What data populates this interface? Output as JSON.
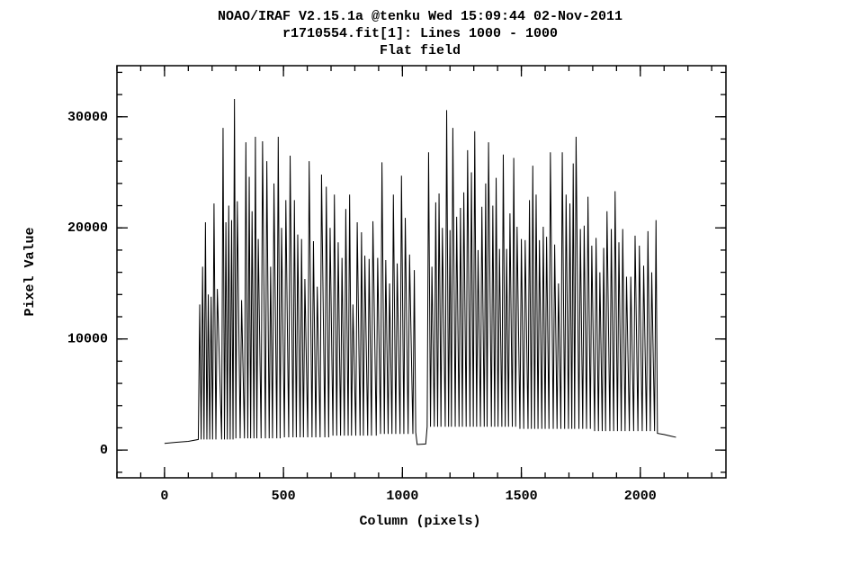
{
  "chart_data": {
    "type": "line",
    "title": [
      "NOAO/IRAF V2.15.1a @tenku Wed 15:09:44 02-Nov-2011",
      "r1710554.fit[1]: Lines 1000 - 1000",
      "Flat field"
    ],
    "xlabel": "Column (pixels)",
    "ylabel": "Pixel Value",
    "color": "#000000",
    "xlim": [
      -200,
      2360
    ],
    "ylim": [
      -2500,
      34600
    ],
    "xticks": [
      0,
      500,
      1000,
      1500,
      2000
    ],
    "yticks": [
      0,
      10000,
      20000,
      30000
    ],
    "x": [
      0,
      50,
      100,
      142,
      148,
      154,
      160,
      166,
      172,
      178,
      184,
      190,
      196,
      202,
      208,
      216,
      222,
      240,
      246,
      252,
      258,
      264,
      270,
      276,
      282,
      288,
      294,
      300,
      306,
      318,
      324,
      336,
      342,
      350,
      356,
      362,
      368,
      376,
      382,
      388,
      394,
      406,
      412,
      424,
      430,
      440,
      446,
      454,
      460,
      472,
      478,
      486,
      492,
      504,
      510,
      522,
      528,
      540,
      546,
      554,
      560,
      570,
      576,
      584,
      590,
      602,
      608,
      620,
      626,
      636,
      642,
      654,
      660,
      674,
      680,
      690,
      696,
      708,
      714,
      724,
      730,
      740,
      746,
      756,
      762,
      772,
      778,
      786,
      792,
      804,
      810,
      822,
      828,
      836,
      842,
      854,
      860,
      870,
      876,
      890,
      896,
      908,
      914,
      924,
      930,
      940,
      946,
      956,
      962,
      972,
      978,
      990,
      996,
      1006,
      1012,
      1024,
      1030,
      1044,
      1050,
      1056,
      1062,
      1098,
      1104,
      1110,
      1118,
      1124,
      1134,
      1140,
      1148,
      1154,
      1162,
      1168,
      1180,
      1186,
      1194,
      1200,
      1206,
      1212,
      1222,
      1228,
      1238,
      1244,
      1252,
      1258,
      1268,
      1274,
      1284,
      1290,
      1298,
      1304,
      1312,
      1318,
      1328,
      1334,
      1344,
      1350,
      1356,
      1362,
      1374,
      1380,
      1388,
      1394,
      1402,
      1408,
      1418,
      1424,
      1432,
      1438,
      1446,
      1452,
      1462,
      1468,
      1476,
      1482,
      1494,
      1500,
      1510,
      1516,
      1528,
      1534,
      1542,
      1548,
      1556,
      1562,
      1570,
      1576,
      1586,
      1592,
      1600,
      1606,
      1616,
      1622,
      1634,
      1640,
      1650,
      1656,
      1666,
      1672,
      1682,
      1688,
      1698,
      1704,
      1712,
      1718,
      1724,
      1730,
      1742,
      1748,
      1758,
      1764,
      1774,
      1780,
      1790,
      1796,
      1808,
      1814,
      1824,
      1830,
      1840,
      1846,
      1854,
      1860,
      1872,
      1878,
      1888,
      1894,
      1904,
      1910,
      1920,
      1926,
      1936,
      1942,
      1954,
      1960,
      1972,
      1978,
      1990,
      1996,
      2008,
      2014,
      2026,
      2032,
      2042,
      2048,
      2060,
      2066,
      2072,
      2100,
      2130,
      2150
    ],
    "values": [
      600,
      700,
      780,
      950,
      13100,
      950,
      16500,
      950,
      20500,
      950,
      14000,
      950,
      13800,
      950,
      22200,
      950,
      14500,
      950,
      29000,
      950,
      20500,
      950,
      22000,
      950,
      20700,
      950,
      31600,
      1050,
      22400,
      1050,
      13500,
      1050,
      27700,
      1050,
      24600,
      1050,
      21500,
      1050,
      28200,
      1050,
      19000,
      1050,
      27800,
      1050,
      26000,
      1050,
      16500,
      1050,
      24000,
      1050,
      28200,
      1050,
      20000,
      1150,
      22500,
      1150,
      26500,
      1150,
      22500,
      1150,
      19400,
      1150,
      19000,
      1150,
      15400,
      1150,
      26000,
      1150,
      18800,
      1150,
      14700,
      1150,
      24800,
      1150,
      23700,
      1150,
      20000,
      1300,
      23000,
      1300,
      18700,
      1300,
      17300,
      1300,
      21700,
      1300,
      23000,
      1300,
      13100,
      1300,
      20500,
      1300,
      19600,
      1300,
      17500,
      1300,
      17200,
      1300,
      20600,
      1300,
      17300,
      1450,
      25900,
      1450,
      17100,
      1450,
      15000,
      1450,
      23000,
      1450,
      16800,
      1450,
      24700,
      1450,
      20900,
      1450,
      17600,
      1450,
      16200,
      1600,
      500,
      550,
      2100,
      26800,
      2100,
      16500,
      2100,
      22300,
      2100,
      23100,
      2100,
      20000,
      2100,
      30600,
      2100,
      19800,
      2100,
      29000,
      2100,
      21000,
      2100,
      21800,
      2100,
      23200,
      2100,
      27000,
      2100,
      25000,
      2100,
      28700,
      2100,
      18000,
      2100,
      21900,
      2100,
      24000,
      2100,
      27700,
      2100,
      22000,
      2100,
      24500,
      2100,
      18100,
      2100,
      26600,
      2100,
      18100,
      2100,
      21300,
      2100,
      26300,
      2100,
      20100,
      1900,
      19000,
      1900,
      18900,
      1900,
      22500,
      1900,
      25600,
      1900,
      23000,
      1900,
      18900,
      1900,
      20100,
      1900,
      19200,
      1900,
      26800,
      1900,
      18500,
      1900,
      15000,
      1900,
      26800,
      1900,
      23000,
      1900,
      22200,
      1900,
      25800,
      1900,
      28200,
      1900,
      19900,
      1900,
      20200,
      1900,
      22800,
      1900,
      18400,
      1700,
      19100,
      1700,
      16000,
      1700,
      18200,
      1700,
      21500,
      1700,
      19900,
      1700,
      23300,
      1700,
      18700,
      1700,
      19900,
      1700,
      15600,
      1700,
      15600,
      1700,
      19300,
      1700,
      18400,
      1700,
      16600,
      1700,
      19700,
      1700,
      16000,
      1700,
      20700,
      1500,
      1400,
      1250,
      1150
    ]
  }
}
